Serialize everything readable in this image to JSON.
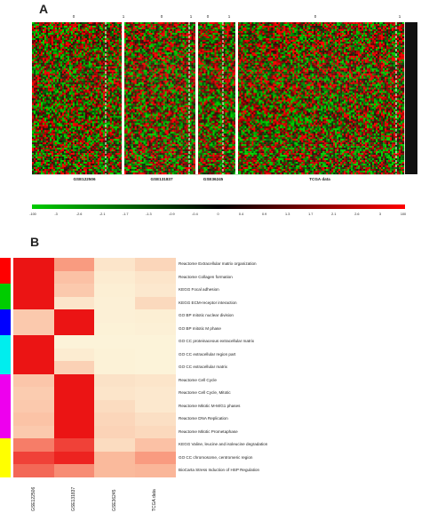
{
  "figure": {
    "panel_a_label": "A",
    "panel_b_label": "B"
  },
  "panel_a": {
    "datasets": [
      {
        "name": "GSE122506",
        "groups": [
          "0",
          "1"
        ]
      },
      {
        "name": "GSE131837",
        "groups": [
          "0",
          "1"
        ]
      },
      {
        "name": "GSE36245",
        "groups": [
          "0",
          "1"
        ]
      },
      {
        "name": "TCGA data",
        "groups": [
          "0",
          "1"
        ]
      }
    ],
    "colorscale": {
      "ticks": [
        "-100",
        "-3",
        "-2.6",
        "-2.1",
        "-1.7",
        "-1.3",
        "-0.9",
        "-0.4",
        "0",
        "0.4",
        "0.9",
        "1.3",
        "1.7",
        "2.1",
        "2.6",
        "3",
        "100"
      ],
      "low_color": "#00cc00",
      "mid_color": "#000000",
      "high_color": "#ff0000"
    }
  },
  "chart_data": {
    "type": "heatmap",
    "columns": [
      "GSE122506",
      "GSE131837",
      "GSE36245",
      "TCGA data"
    ],
    "rows": [
      "Reactome Extracellular matrix organization",
      "Reactome Collagen formation",
      "KEGG Focal adhesion",
      "KEGG ECM-receptor interaction",
      "GO BP mitotic nuclear division",
      "GO BP mitotic M phase",
      "GO CC proteinaceous extracellular matrix",
      "GO CC extracellular region part",
      "GO CC extracellular matrix",
      "Reactome Cell Cycle",
      "Reactome Cell Cycle, Mitotic",
      "Reactome Mitotic M-M/G1 phases",
      "Reactome DNA Replication",
      "Reactome Mitotic Prometaphase",
      "KEGG Valine, leucine and isoleucine degradation",
      "GO CC chromosome, centromeric region",
      "BioCarta Stress Induction of HSP Regulation"
    ],
    "values": [
      [
        1.0,
        0.55,
        0.12,
        0.22
      ],
      [
        1.0,
        0.35,
        0.08,
        0.12
      ],
      [
        1.0,
        0.3,
        0.06,
        0.1
      ],
      [
        1.0,
        0.12,
        0.05,
        0.2
      ],
      [
        0.3,
        1.0,
        0.05,
        0.06
      ],
      [
        0.3,
        1.0,
        0.04,
        0.05
      ],
      [
        1.0,
        0.03,
        0.03,
        0.03
      ],
      [
        1.0,
        0.08,
        0.04,
        0.03
      ],
      [
        1.0,
        0.25,
        0.04,
        0.03
      ],
      [
        0.32,
        1.0,
        0.14,
        0.12
      ],
      [
        0.28,
        1.0,
        0.12,
        0.1
      ],
      [
        0.3,
        1.0,
        0.18,
        0.1
      ],
      [
        0.34,
        1.0,
        0.22,
        0.16
      ],
      [
        0.3,
        1.0,
        0.24,
        0.2
      ],
      [
        0.65,
        0.85,
        0.18,
        0.35
      ],
      [
        0.85,
        0.95,
        0.4,
        0.55
      ],
      [
        0.72,
        0.6,
        0.4,
        0.42
      ]
    ],
    "category_colors": [
      {
        "color": "#ff0000",
        "rows": [
          0,
          1
        ]
      },
      {
        "color": "#00cc00",
        "rows": [
          2,
          3
        ]
      },
      {
        "color": "#0000ff",
        "rows": [
          4,
          5
        ]
      },
      {
        "color": "#00eeee",
        "rows": [
          6,
          7,
          8
        ]
      },
      {
        "color": "#ee00ee",
        "rows": [
          9,
          10,
          11,
          12,
          13
        ]
      },
      {
        "color": "#ffff00",
        "rows": [
          14,
          15,
          16
        ]
      }
    ]
  }
}
